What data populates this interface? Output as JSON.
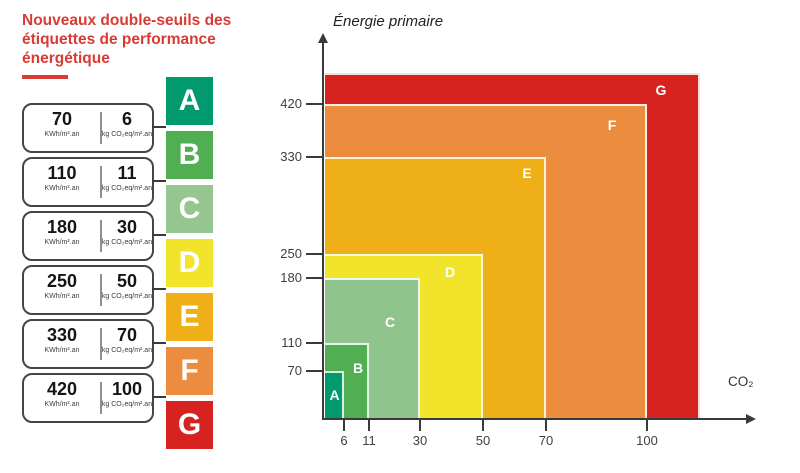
{
  "title": {
    "text": "Nouveaux double-seuils des étiquettes de performance énergétique",
    "color": "#D83B34"
  },
  "panel": {
    "rows": [
      {
        "energy": "70",
        "energy_unit": "KWh/m².an",
        "co2": "6",
        "co2_unit": "kg CO₂eq/m².an"
      },
      {
        "energy": "110",
        "energy_unit": "KWh/m².an",
        "co2": "11",
        "co2_unit": "kg CO₂eq/m².an"
      },
      {
        "energy": "180",
        "energy_unit": "KWh/m².an",
        "co2": "30",
        "co2_unit": "kg CO₂eq/m².an"
      },
      {
        "energy": "250",
        "energy_unit": "KWh/m².an",
        "co2": "50",
        "co2_unit": "kg CO₂eq/m².an"
      },
      {
        "energy": "330",
        "energy_unit": "KWh/m².an",
        "co2": "70",
        "co2_unit": "kg CO₂eq/m².an"
      },
      {
        "energy": "420",
        "energy_unit": "KWh/m².an",
        "co2": "100",
        "co2_unit": "kg CO₂eq/m².an"
      }
    ]
  },
  "scale": {
    "classes": [
      {
        "letter": "A",
        "color": "#009A6E"
      },
      {
        "letter": "B",
        "color": "#52AE52"
      },
      {
        "letter": "C",
        "color": "#95C690"
      },
      {
        "letter": "D",
        "color": "#F2E32B"
      },
      {
        "letter": "E",
        "color": "#EEAF19"
      },
      {
        "letter": "F",
        "color": "#EC8C3F"
      },
      {
        "letter": "G",
        "color": "#D7231F"
      }
    ]
  },
  "chart_data": {
    "type": "area",
    "title": "",
    "xlabel": "CO₂",
    "ylabel": "Énergie primaire",
    "x_ticks": [
      6,
      11,
      30,
      50,
      70,
      100
    ],
    "y_ticks": [
      70,
      110,
      180,
      250,
      330,
      420
    ],
    "legend_position": "none",
    "grid": false,
    "zones": [
      {
        "label": "A",
        "energy_max": 70,
        "co2_max": 6,
        "color": "#009A6E"
      },
      {
        "label": "B",
        "energy_max": 110,
        "co2_max": 11,
        "color": "#52AE52"
      },
      {
        "label": "C",
        "energy_max": 180,
        "co2_max": 30,
        "color": "#90C48D"
      },
      {
        "label": "D",
        "energy_max": 250,
        "co2_max": 50,
        "color": "#F2E32B"
      },
      {
        "label": "E",
        "energy_max": 330,
        "co2_max": 70,
        "color": "#EEAF19"
      },
      {
        "label": "F",
        "energy_max": 420,
        "co2_max": 100,
        "color": "#EC8C3F"
      },
      {
        "label": "G",
        "energy_max": null,
        "co2_max": null,
        "color": "#D7231F"
      }
    ]
  }
}
